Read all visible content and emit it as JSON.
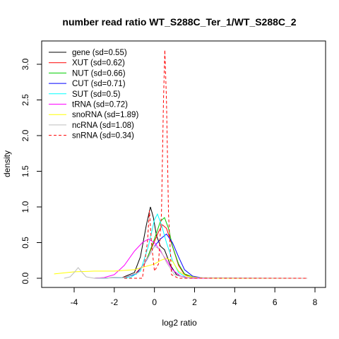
{
  "chart_data": {
    "type": "line",
    "title": "number read ratio WT_S288C_Ter_1/WT_S288C_2",
    "xlabel": "log2 ratio",
    "ylabel": "density",
    "xlim": [
      -5.0,
      8.0
    ],
    "ylim": [
      0.0,
      3.35
    ],
    "xticks": [
      -4,
      -2,
      0,
      2,
      4,
      6,
      8
    ],
    "xtick_labels": [
      "-4",
      "-2",
      "0",
      "2",
      "4",
      "6",
      "8"
    ],
    "yticks": [
      0.0,
      0.5,
      1.0,
      1.5,
      2.0,
      2.5,
      3.0
    ],
    "ytick_labels": [
      "0.0",
      "0.5",
      "1.0",
      "1.5",
      "2.0",
      "2.5",
      "3.0"
    ],
    "grid": false,
    "legend_position": "top-left",
    "series": [
      {
        "name": "gene (sd=0.55)",
        "color": "#000000",
        "dash": false,
        "points": [
          [
            -3.0,
            0
          ],
          [
            -1.6,
            0.01
          ],
          [
            -1.0,
            0.08
          ],
          [
            -0.7,
            0.3
          ],
          [
            -0.4,
            0.75
          ],
          [
            -0.2,
            1.0
          ],
          [
            -0.05,
            0.85
          ],
          [
            0.1,
            0.6
          ],
          [
            0.3,
            0.45
          ],
          [
            0.5,
            0.4
          ],
          [
            0.8,
            0.18
          ],
          [
            1.1,
            0.05
          ],
          [
            1.5,
            0.01
          ],
          [
            2.5,
            0
          ],
          [
            7.6,
            0
          ]
        ]
      },
      {
        "name": "XUT (sd=0.62)",
        "color": "#ff0000",
        "dash": false,
        "points": [
          [
            -3.0,
            0
          ],
          [
            -1.6,
            0.01
          ],
          [
            -1.0,
            0.05
          ],
          [
            -0.5,
            0.2
          ],
          [
            -0.1,
            0.45
          ],
          [
            0.2,
            0.65
          ],
          [
            0.4,
            0.75
          ],
          [
            0.6,
            0.7
          ],
          [
            0.9,
            0.45
          ],
          [
            1.2,
            0.18
          ],
          [
            1.5,
            0.05
          ],
          [
            2.0,
            0.01
          ],
          [
            3.0,
            0
          ],
          [
            7.6,
            0
          ]
        ]
      },
      {
        "name": "NUT (sd=0.66)",
        "color": "#00cd00",
        "dash": false,
        "points": [
          [
            -3.0,
            0
          ],
          [
            -1.5,
            0.01
          ],
          [
            -0.9,
            0.06
          ],
          [
            -0.4,
            0.25
          ],
          [
            0.0,
            0.55
          ],
          [
            0.3,
            0.8
          ],
          [
            0.5,
            0.85
          ],
          [
            0.7,
            0.7
          ],
          [
            0.9,
            0.45
          ],
          [
            1.2,
            0.2
          ],
          [
            1.5,
            0.06
          ],
          [
            2.0,
            0.01
          ],
          [
            3.0,
            0
          ],
          [
            7.6,
            0
          ]
        ]
      },
      {
        "name": "CUT (sd=0.71)",
        "color": "#0000ff",
        "dash": false,
        "points": [
          [
            -3.0,
            0
          ],
          [
            -1.5,
            0.01
          ],
          [
            -0.9,
            0.06
          ],
          [
            -0.4,
            0.25
          ],
          [
            0.0,
            0.45
          ],
          [
            0.3,
            0.55
          ],
          [
            0.6,
            0.62
          ],
          [
            0.9,
            0.5
          ],
          [
            1.2,
            0.3
          ],
          [
            1.5,
            0.12
          ],
          [
            1.9,
            0.03
          ],
          [
            2.5,
            0
          ],
          [
            7.6,
            0
          ]
        ]
      },
      {
        "name": "SUT (sd=0.5)",
        "color": "#00ffff",
        "dash": false,
        "points": [
          [
            -3.0,
            0
          ],
          [
            -1.2,
            0.01
          ],
          [
            -0.7,
            0.1
          ],
          [
            -0.3,
            0.45
          ],
          [
            0.0,
            0.82
          ],
          [
            0.15,
            0.9
          ],
          [
            0.35,
            0.75
          ],
          [
            0.6,
            0.5
          ],
          [
            0.9,
            0.25
          ],
          [
            1.2,
            0.08
          ],
          [
            1.6,
            0.01
          ],
          [
            2.5,
            0
          ],
          [
            7.6,
            0
          ]
        ]
      },
      {
        "name": "tRNA (sd=0.72)",
        "color": "#ff00ff",
        "dash": false,
        "points": [
          [
            -3.0,
            0
          ],
          [
            -2.5,
            0.01
          ],
          [
            -2.0,
            0.05
          ],
          [
            -1.5,
            0.18
          ],
          [
            -1.0,
            0.38
          ],
          [
            -0.6,
            0.5
          ],
          [
            -0.3,
            0.55
          ],
          [
            0.0,
            0.5
          ],
          [
            0.3,
            0.38
          ],
          [
            0.6,
            0.25
          ],
          [
            0.9,
            0.12
          ],
          [
            1.3,
            0.03
          ],
          [
            1.8,
            0
          ],
          [
            7.6,
            0
          ]
        ]
      },
      {
        "name": "snoRNA (sd=1.89)",
        "color": "#ffff00",
        "dash": false,
        "points": [
          [
            -5.0,
            0.06
          ],
          [
            -4.0,
            0.09
          ],
          [
            -3.0,
            0.1
          ],
          [
            -2.0,
            0.1
          ],
          [
            -1.0,
            0.12
          ],
          [
            -0.5,
            0.16
          ],
          [
            0.0,
            0.2
          ],
          [
            0.3,
            0.25
          ],
          [
            0.6,
            0.28
          ],
          [
            0.9,
            0.24
          ],
          [
            1.2,
            0.1
          ],
          [
            1.6,
            0.03
          ],
          [
            2.2,
            0.01
          ],
          [
            3.0,
            0
          ],
          [
            7.6,
            0
          ]
        ]
      },
      {
        "name": "ncRNA (sd=1.08)",
        "color": "#bebebe",
        "dash": false,
        "points": [
          [
            -4.5,
            0
          ],
          [
            -4.2,
            0.02
          ],
          [
            -4.0,
            0.08
          ],
          [
            -3.8,
            0.15
          ],
          [
            -3.6,
            0.08
          ],
          [
            -3.4,
            0.02
          ],
          [
            -3.0,
            0
          ],
          [
            -1.5,
            0.01
          ],
          [
            -0.8,
            0.08
          ],
          [
            -0.3,
            0.3
          ],
          [
            0.0,
            0.45
          ],
          [
            0.3,
            0.4
          ],
          [
            0.6,
            0.22
          ],
          [
            1.0,
            0.05
          ],
          [
            1.5,
            0.01
          ],
          [
            7.6,
            0
          ]
        ]
      },
      {
        "name": "snRNA (sd=0.34)",
        "color": "#ff0000",
        "dash": true,
        "points": [
          [
            -1.5,
            0
          ],
          [
            -0.6,
            0
          ],
          [
            -0.35,
            0.5
          ],
          [
            -0.25,
            0.95
          ],
          [
            -0.15,
            0.5
          ],
          [
            0.0,
            0.1
          ],
          [
            0.2,
            0.2
          ],
          [
            0.35,
            0.9
          ],
          [
            0.45,
            2.5
          ],
          [
            0.52,
            3.2
          ],
          [
            0.6,
            2.5
          ],
          [
            0.7,
            0.9
          ],
          [
            0.85,
            0.05
          ],
          [
            1.2,
            0
          ],
          [
            7.6,
            0
          ]
        ]
      }
    ]
  }
}
